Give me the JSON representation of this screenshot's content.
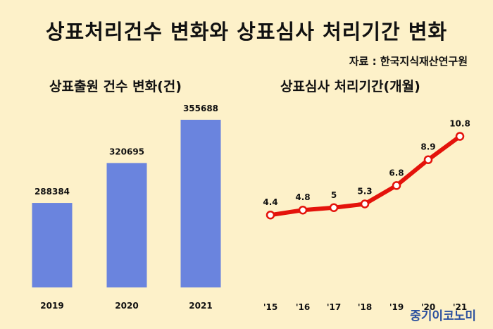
{
  "header": {
    "title": "상표처리건수 변화와 상표심사 처리기간 변화",
    "source": "자료 : 한국지식재산연구원"
  },
  "brand": "중기이코노미",
  "chart_data": [
    {
      "type": "bar",
      "title": "상표출원 건수 변화(건)",
      "categories": [
        "2019",
        "2020",
        "2021"
      ],
      "values": [
        288384,
        320695,
        355688
      ],
      "color": "#6a84de"
    },
    {
      "type": "line",
      "title": "상표심사 처리기간(개월)",
      "categories": [
        "'15",
        "'16",
        "'17",
        "'18",
        "'19",
        "'20",
        "'21"
      ],
      "values": [
        4.4,
        4.8,
        5,
        5.3,
        6.8,
        8.9,
        10.8
      ],
      "color": "#e4130b"
    }
  ]
}
